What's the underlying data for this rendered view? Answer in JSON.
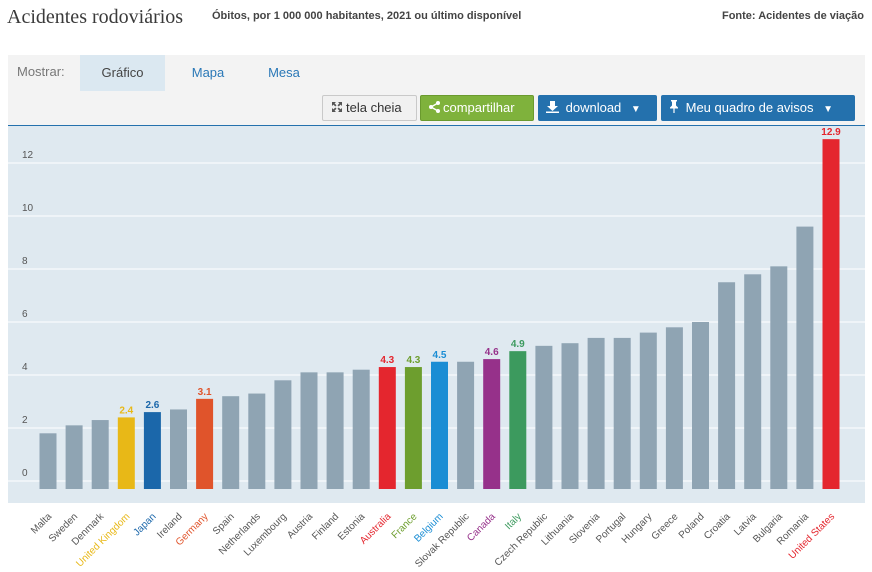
{
  "header": {
    "title": "Acidentes rodoviários",
    "subtitle": "Óbitos, por 1 000 000 habitantes, 2021 ou último disponível",
    "source": "Fonte: Acidentes de viação"
  },
  "toolbar": {
    "show_label": "Mostrar:",
    "tabs": [
      "Gráfico",
      "Mapa",
      "Mesa"
    ],
    "fullscreen_label": "tela cheia",
    "share_label": "compartilhar",
    "download_label": "download",
    "dashboard_label": "Meu quadro de avisos"
  },
  "colors": {
    "default_bar": "#8fa4b3",
    "plot_background": "#dfe9f0",
    "gridline": "#ffffff"
  },
  "chart_data": {
    "type": "bar",
    "title": "Acidentes rodoviários",
    "xlabel": "",
    "ylabel": "",
    "ylim": [
      0,
      13.5
    ],
    "yticks": [
      0,
      2,
      4,
      6,
      8,
      10,
      12
    ],
    "grid": true,
    "categories": [
      "Malta",
      "Sweden",
      "Denmark",
      "United Kingdom",
      "Japan",
      "Ireland",
      "Germany",
      "Spain",
      "Netherlands",
      "Luxembourg",
      "Austria",
      "Finland",
      "Estonia",
      "Australia",
      "France",
      "Belgium",
      "Slovak Republic",
      "Canada",
      "Italy",
      "Czech Republic",
      "Lithuania",
      "Slovenia",
      "Portugal",
      "Hungary",
      "Greece",
      "Poland",
      "Croatia",
      "Latvia",
      "Bulgaria",
      "Romania",
      "United States"
    ],
    "values": [
      1.8,
      2.1,
      2.3,
      2.4,
      2.6,
      2.7,
      3.1,
      3.2,
      3.3,
      3.8,
      4.1,
      4.1,
      4.2,
      4.3,
      4.3,
      4.5,
      4.5,
      4.6,
      4.9,
      5.1,
      5.2,
      5.4,
      5.4,
      5.6,
      5.8,
      6.0,
      7.5,
      7.8,
      8.1,
      9.6,
      12.9
    ],
    "highlight_colors": {
      "United Kingdom": "#e8b817",
      "Japan": "#1b67aa",
      "Germany": "#e0542b",
      "Australia": "#e4262e",
      "France": "#6d9e2e",
      "Belgium": "#1a8dd4",
      "Canada": "#96318a",
      "Italy": "#3c9a5e",
      "United States": "#e4262e"
    },
    "data_labels": {
      "United Kingdom": "2.4",
      "Japan": "2.6",
      "Germany": "3.1",
      "Australia": "4.3",
      "France": "4.3",
      "Belgium": "4.5",
      "Canada": "4.6",
      "Italy": "4.9",
      "United States": "12.9"
    }
  }
}
